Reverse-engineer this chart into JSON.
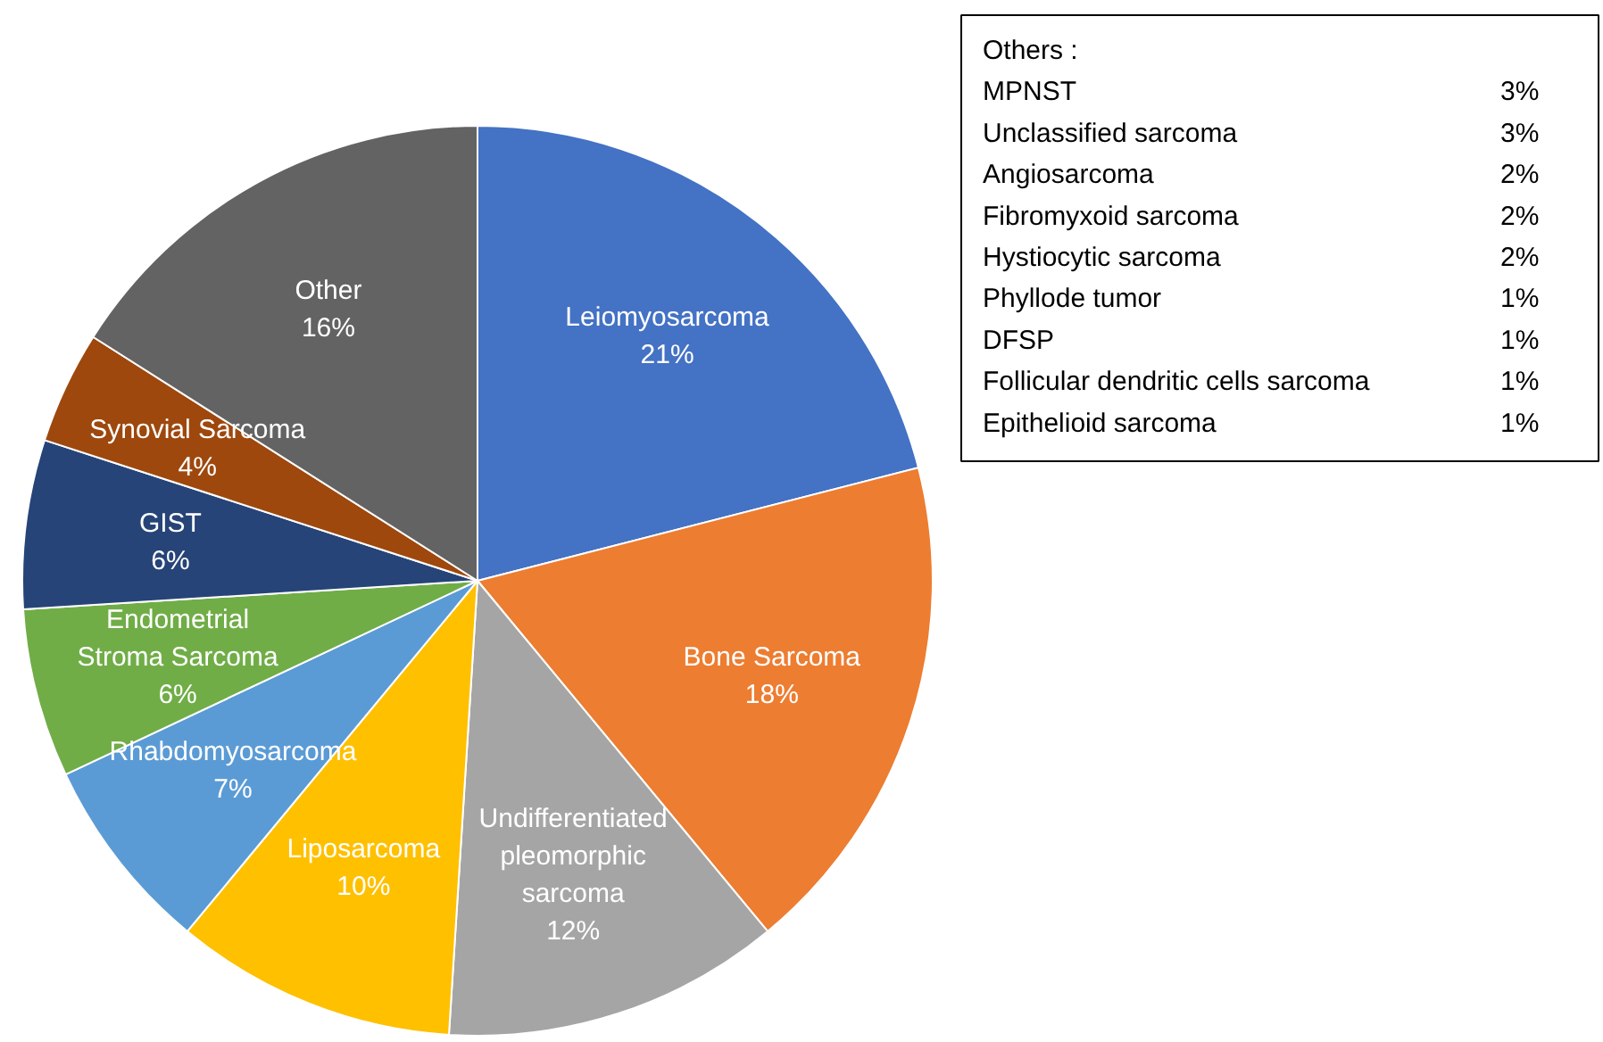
{
  "chart_data": [
    {
      "type": "pie",
      "categories": [
        "Leiomyosarcoma",
        "Bone Sarcoma",
        "Undifferentiated pleomorphic sarcoma",
        "Liposarcoma",
        "Rhabdomyosarcoma",
        "Endometrial Stroma Sarcoma",
        "GIST",
        "Synovial Sarcoma",
        "Other"
      ],
      "values": [
        21,
        18,
        12,
        10,
        7,
        6,
        6,
        4,
        16
      ],
      "value_labels": [
        "21%",
        "18%",
        "12%",
        "10%",
        "7%",
        "6%",
        "6%",
        "4%",
        "16%"
      ],
      "colors": [
        "#4472c4",
        "#ed7d31",
        "#a5a5a5",
        "#ffc000",
        "#5b9bd5",
        "#70ad47",
        "#264478",
        "#9e480e",
        "#636363"
      ]
    },
    {
      "type": "other",
      "title": "Others :",
      "categories": [
        "MPNST",
        "Unclassified sarcoma",
        "Angiosarcoma",
        "Fibromyxoid sarcoma",
        "Hystiocytic sarcoma",
        "Phyllode tumor",
        "DFSP",
        "Follicular dendritic cells sarcoma",
        "Epithelioid sarcoma"
      ],
      "value_labels": [
        "3%",
        "3%",
        "2%",
        "2%",
        "2%",
        "1%",
        "1%",
        "1%",
        "1%"
      ]
    }
  ]
}
